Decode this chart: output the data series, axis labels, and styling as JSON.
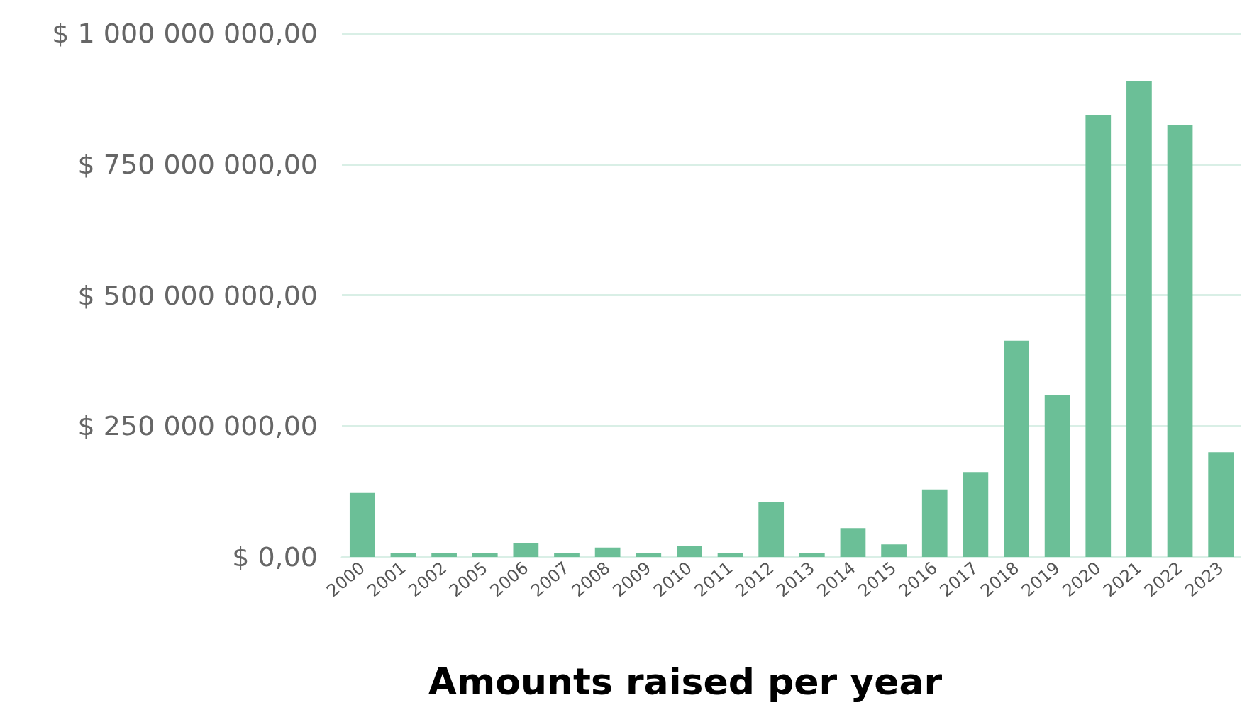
{
  "chart_data": {
    "type": "bar",
    "xlabel": "Amounts raised per year",
    "categories": [
      "2000",
      "2001",
      "2002",
      "2005",
      "2006",
      "2007",
      "2008",
      "2009",
      "2010",
      "2011",
      "2012",
      "2013",
      "2014",
      "2015",
      "2016",
      "2017",
      "2018",
      "2019",
      "2020",
      "2021",
      "2022",
      "2023"
    ],
    "values": [
      122000000,
      7000000,
      7000000,
      7000000,
      27000000,
      7000000,
      18000000,
      7000000,
      21000000,
      7000000,
      105000000,
      7000000,
      55000000,
      24000000,
      129000000,
      162000000,
      413000000,
      309000000,
      844000000,
      909000000,
      825000000,
      200000000
    ],
    "color": "#6bbf97",
    "ylim": [
      0,
      1000000000
    ],
    "yticks": [
      {
        "value": 0,
        "label": "$ 0,00"
      },
      {
        "value": 250000000,
        "label": "$ 250 000 000,00"
      },
      {
        "value": 500000000,
        "label": "$ 500 000 000,00"
      },
      {
        "value": 750000000,
        "label": "$ 750 000 000,00"
      },
      {
        "value": 1000000000,
        "label": "$ 1 000 000 000,00"
      }
    ],
    "grid": "y"
  }
}
